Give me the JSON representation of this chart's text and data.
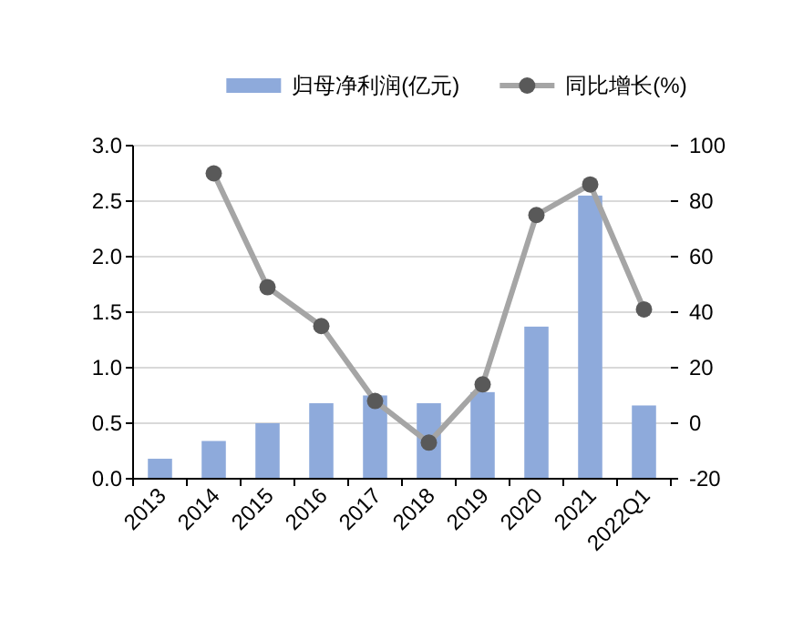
{
  "chart_data": {
    "type": "bar",
    "categories": [
      "2013",
      "2014",
      "2015",
      "2016",
      "2017",
      "2018",
      "2019",
      "2020",
      "2021",
      "2022Q1"
    ],
    "series": [
      {
        "name": "归母净利润(亿元)",
        "color": "#8eaadb",
        "values": [
          0.18,
          0.34,
          0.5,
          0.68,
          0.75,
          0.68,
          0.78,
          1.37,
          2.55,
          0.66
        ]
      },
      {
        "name": "同比增长(%)",
        "type": "line",
        "axis": "y2",
        "color": "#a5a5a5",
        "marker": "circle",
        "values": [
          null,
          90,
          49,
          35,
          8,
          -7,
          14,
          75,
          86,
          41
        ]
      }
    ],
    "ylim": [
      0,
      3
    ],
    "yticks": [
      {
        "value": 0,
        "label": "0.0"
      },
      {
        "value": 0.5,
        "label": "0.5"
      },
      {
        "value": 1,
        "label": "1.0"
      },
      {
        "value": 1.5,
        "label": "1.5"
      },
      {
        "value": 2,
        "label": "2.0"
      },
      {
        "value": 2.5,
        "label": "2.5"
      },
      {
        "value": 3,
        "label": "3.0"
      }
    ],
    "y2lim": [
      -20,
      100
    ],
    "y2ticks": [
      -20,
      0,
      20,
      40,
      60,
      80,
      100
    ],
    "grid": "y",
    "legend": "top"
  }
}
